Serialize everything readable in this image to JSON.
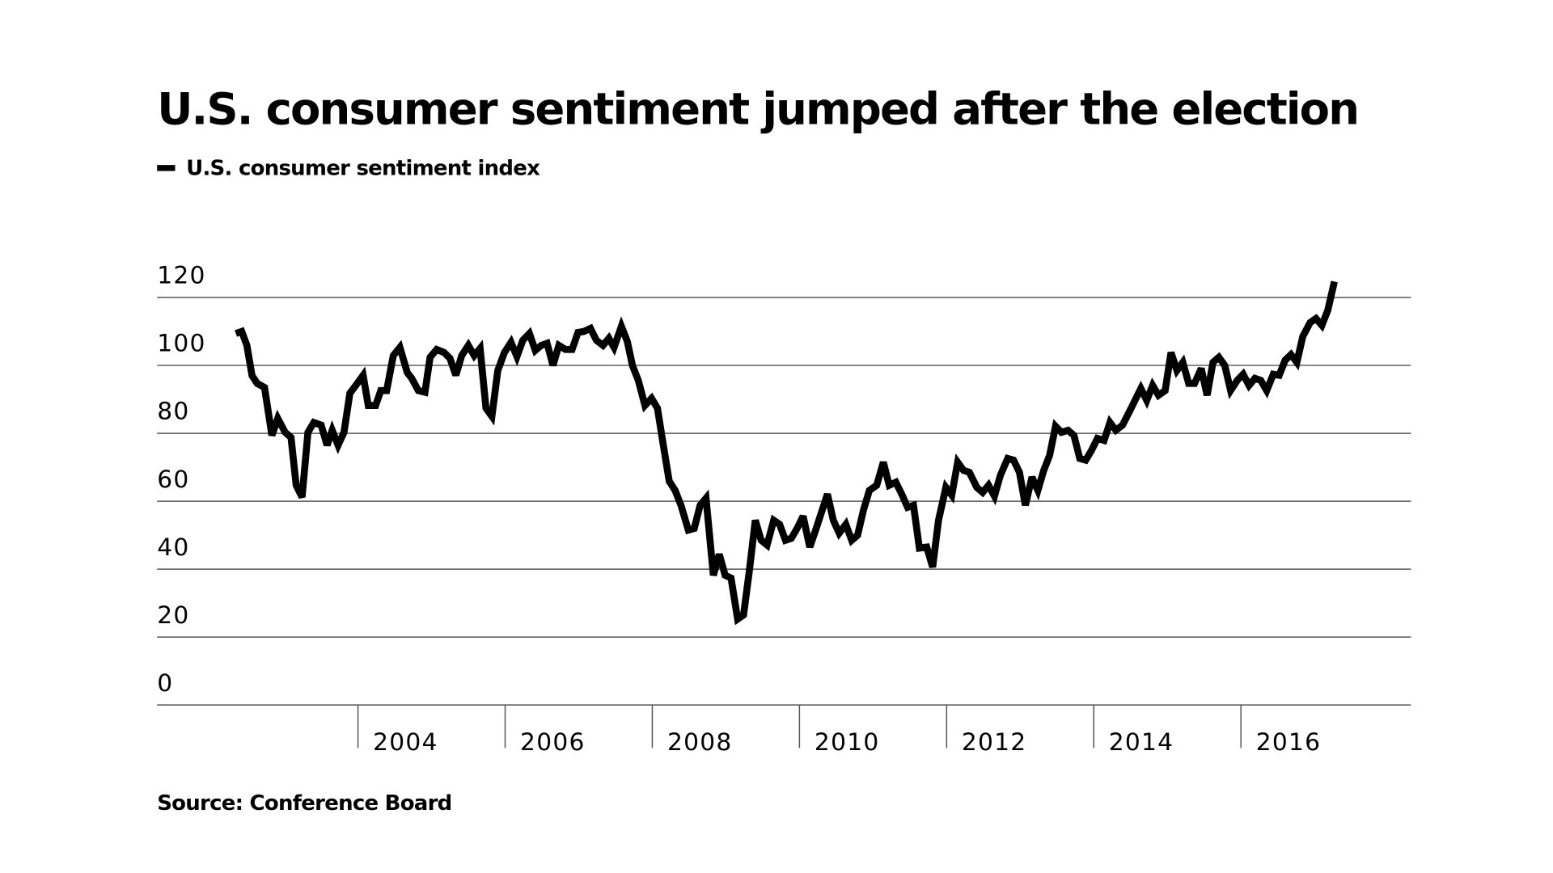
{
  "chart_data": {
    "type": "line",
    "title": "U.S. consumer sentiment jumped after the election",
    "source": "Source: Conference Board",
    "xlim": [
      2001.27,
      2018.31
    ],
    "xticks": [
      2004,
      2006,
      2008,
      2010,
      2012,
      2014,
      2016
    ],
    "ylim": [
      0,
      120
    ],
    "yticks": [
      0,
      20,
      40,
      60,
      80,
      100,
      120
    ],
    "grid": true,
    "legend": "top-left",
    "x": [
      2002.34,
      2002.42,
      2002.49,
      2002.56,
      2002.63,
      2002.73,
      2002.83,
      2002.91,
      2003.01,
      2003.09,
      2003.16,
      2003.24,
      2003.32,
      2003.4,
      2003.5,
      2003.58,
      2003.65,
      2003.73,
      2003.81,
      2003.89,
      2003.97,
      2004.07,
      2004.14,
      2004.24,
      2004.31,
      2004.39,
      2004.48,
      2004.57,
      2004.67,
      2004.73,
      2004.82,
      2004.91,
      2004.98,
      2005.07,
      2005.17,
      2005.25,
      2005.33,
      2005.41,
      2005.5,
      2005.58,
      2005.66,
      2005.74,
      2005.82,
      2005.9,
      2005.99,
      2006.08,
      2006.16,
      2006.24,
      2006.33,
      2006.41,
      2006.49,
      2006.57,
      2006.65,
      2006.73,
      2006.82,
      2006.91,
      2006.99,
      2007.07,
      2007.16,
      2007.24,
      2007.33,
      2007.41,
      2007.48,
      2007.58,
      2007.66,
      2007.73,
      2007.81,
      2007.9,
      2007.99,
      2008.07,
      2008.15,
      2008.23,
      2008.31,
      2008.39,
      2008.49,
      2008.57,
      2008.65,
      2008.73,
      2008.83,
      2008.91,
      2008.99,
      2009.07,
      2009.16,
      2009.24,
      2009.32,
      2009.4,
      2009.48,
      2009.56,
      2009.65,
      2009.73,
      2009.81,
      2009.89,
      2009.97,
      2010.05,
      2010.14,
      2010.22,
      2010.3,
      2010.38,
      2010.46,
      2010.54,
      2010.63,
      2010.71,
      2010.79,
      2010.87,
      2010.95,
      2011.05,
      2011.14,
      2011.22,
      2011.31,
      2011.39,
      2011.47,
      2011.55,
      2011.63,
      2011.73,
      2011.81,
      2011.89,
      2011.99,
      2012.07,
      2012.15,
      2012.23,
      2012.31,
      2012.41,
      2012.49,
      2012.57,
      2012.65,
      2012.73,
      2012.83,
      2012.91,
      2012.99,
      2013.07,
      2013.16,
      2013.24,
      2013.32,
      2013.4,
      2013.48,
      2013.56,
      2013.65,
      2013.73,
      2013.81,
      2013.89,
      2013.97,
      2014.05,
      2014.14,
      2014.22,
      2014.3,
      2014.39,
      2014.48,
      2014.56,
      2014.64,
      2014.72,
      2014.8,
      2014.88,
      2014.97,
      2015.05,
      2015.13,
      2015.21,
      2015.29,
      2015.37,
      2015.46,
      2015.54,
      2015.62,
      2015.7,
      2015.78,
      2015.86,
      2015.95,
      2016.03,
      2016.11,
      2016.19,
      2016.27,
      2016.35,
      2016.44,
      2016.52,
      2016.6,
      2016.68,
      2016.76,
      2016.84,
      2016.94,
      2017.02,
      2017.1,
      2017.18,
      2017.27
    ],
    "series": [
      {
        "name": "U.S. consumer sentiment index",
        "color": "#000000",
        "values": [
          109.4,
          110,
          105.9,
          97,
          94.7,
          93.5,
          79.4,
          84.4,
          80.3,
          78.8,
          64.7,
          61.2,
          80.3,
          83.2,
          82.4,
          76.5,
          80.9,
          76.5,
          80.3,
          91.8,
          94.1,
          97.1,
          88.2,
          88.2,
          92.6,
          92.6,
          102.9,
          105.3,
          97.9,
          96.2,
          92.6,
          92.1,
          102.4,
          104.7,
          103.8,
          102.1,
          97.1,
          102.9,
          105.9,
          102.9,
          105,
          87.4,
          85,
          98.5,
          103.8,
          106.8,
          102.6,
          107.4,
          109.4,
          104.4,
          105.9,
          106.5,
          100,
          105.9,
          104.7,
          104.7,
          109.7,
          110,
          110.9,
          107.4,
          105.9,
          108,
          105.3,
          111.5,
          107.1,
          100,
          95.6,
          88.2,
          90.3,
          87.4,
          76.5,
          65.9,
          63.2,
          58.8,
          51.5,
          52,
          58.8,
          60.9,
          38.2,
          44.4,
          38.2,
          37.4,
          25.3,
          26.5,
          39.7,
          54.4,
          48.5,
          47.1,
          54.4,
          53.2,
          48.5,
          49.1,
          52.1,
          55.6,
          46.5,
          51.5,
          56.8,
          62.1,
          54.4,
          50.6,
          53.2,
          48.5,
          50,
          57.4,
          63.2,
          64.7,
          71.5,
          64.7,
          65.6,
          62.1,
          58.2,
          58.8,
          46.2,
          46.5,
          40.6,
          54.4,
          64.1,
          61.8,
          71.5,
          69.1,
          68.5,
          64.1,
          62.6,
          64.7,
          61.5,
          67.6,
          72.6,
          72.1,
          68.5,
          58.8,
          67.1,
          63.2,
          69.1,
          73.5,
          82.1,
          80.3,
          80.9,
          79.4,
          72.6,
          72.1,
          75,
          78.5,
          77.9,
          83.2,
          80.9,
          82.4,
          86.2,
          89.7,
          93.2,
          89.7,
          94.1,
          91.2,
          92.6,
          103.8,
          98.5,
          100.9,
          94.7,
          94.7,
          99.1,
          91.2,
          100.9,
          102.4,
          100,
          92.6,
          95.6,
          97.4,
          94.1,
          96.2,
          95.6,
          92.6,
          97.4,
          97.1,
          101.5,
          103.2,
          100.9,
          108.5,
          112.6,
          113.8,
          111.8,
          116.2,
          124.7
        ]
      }
    ]
  }
}
